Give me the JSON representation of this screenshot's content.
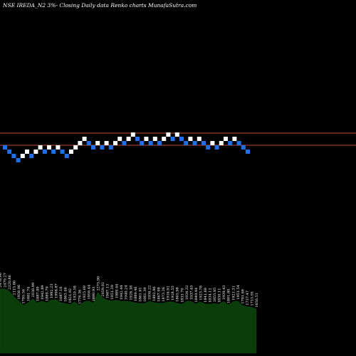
{
  "chart_data": {
    "type": "renko",
    "title": "NSE IREDA_N2  3%-  Closing Daily data  Renko  charts MunafaSutra.com",
    "colors": {
      "background": "#000000",
      "up_brick": "#ffffff",
      "down_brick": "#1e6fe8",
      "reference_line": "#c0522a",
      "volume_fill": "#0b3d0b",
      "volume_text": "#ffffff"
    },
    "reference_lines": [
      {
        "name": "upper",
        "value": 1.055
      },
      {
        "name": "lower",
        "value": 1.0
      }
    ],
    "bricks": [
      {
        "d": "down",
        "level": 2
      },
      {
        "d": "down",
        "level": 1
      },
      {
        "d": "down",
        "level": 0
      },
      {
        "d": "down",
        "level": -1
      },
      {
        "d": "up",
        "level": 0
      },
      {
        "d": "up",
        "level": 1
      },
      {
        "d": "down",
        "level": 0
      },
      {
        "d": "up",
        "level": 1
      },
      {
        "d": "up",
        "level": 2
      },
      {
        "d": "down",
        "level": 1
      },
      {
        "d": "up",
        "level": 2
      },
      {
        "d": "down",
        "level": 1
      },
      {
        "d": "up",
        "level": 2
      },
      {
        "d": "down",
        "level": 1
      },
      {
        "d": "down",
        "level": 0
      },
      {
        "d": "up",
        "level": 1
      },
      {
        "d": "up",
        "level": 2
      },
      {
        "d": "up",
        "level": 3
      },
      {
        "d": "up",
        "level": 4
      },
      {
        "d": "down",
        "level": 3
      },
      {
        "d": "down",
        "level": 2
      },
      {
        "d": "up",
        "level": 3
      },
      {
        "d": "down",
        "level": 2
      },
      {
        "d": "up",
        "level": 3
      },
      {
        "d": "down",
        "level": 2
      },
      {
        "d": "up",
        "level": 3
      },
      {
        "d": "up",
        "level": 4
      },
      {
        "d": "down",
        "level": 3
      },
      {
        "d": "up",
        "level": 4
      },
      {
        "d": "up",
        "level": 5
      },
      {
        "d": "down",
        "level": 4
      },
      {
        "d": "down",
        "level": 3
      },
      {
        "d": "up",
        "level": 4
      },
      {
        "d": "down",
        "level": 3
      },
      {
        "d": "up",
        "level": 4
      },
      {
        "d": "down",
        "level": 3
      },
      {
        "d": "up",
        "level": 4
      },
      {
        "d": "up",
        "level": 5
      },
      {
        "d": "down",
        "level": 4
      },
      {
        "d": "up",
        "level": 5
      },
      {
        "d": "down",
        "level": 4
      },
      {
        "d": "down",
        "level": 3
      },
      {
        "d": "up",
        "level": 4
      },
      {
        "d": "down",
        "level": 3
      },
      {
        "d": "up",
        "level": 4
      },
      {
        "d": "down",
        "level": 3
      },
      {
        "d": "down",
        "level": 2
      },
      {
        "d": "up",
        "level": 3
      },
      {
        "d": "down",
        "level": 2
      },
      {
        "d": "up",
        "level": 3
      },
      {
        "d": "up",
        "level": 4
      },
      {
        "d": "down",
        "level": 3
      },
      {
        "d": "up",
        "level": 4
      },
      {
        "d": "down",
        "level": 3
      },
      {
        "d": "down",
        "level": 2
      },
      {
        "d": "down",
        "level": 1
      }
    ],
    "volume_ylim": [
      0,
      2400
    ],
    "volume": [
      {
        "v": 2476.96,
        "label": "2476.96"
      },
      {
        "v": 2470.27,
        "label": "2470.27"
      },
      {
        "v": 2320.86,
        "label": "2320.86"
      },
      {
        "v": 2115.86,
        "label": "2115.86"
      },
      {
        "v": 1958.06,
        "label": "1958.06"
      },
      {
        "v": 1795.56,
        "label": "1795.56"
      },
      {
        "v": 1881.74,
        "label": "1881.74"
      },
      {
        "v": 2036.99,
        "label": "2036.99"
      },
      {
        "v": 1887.99,
        "label": "1887.99"
      },
      {
        "v": 1942.89,
        "label": "1942.89"
      },
      {
        "v": 1889.79,
        "label": "1889.79"
      },
      {
        "v": 1992.23,
        "label": "1992.23"
      },
      {
        "v": 1998.87,
        "label": "1998.87"
      },
      {
        "v": 1887.16,
        "label": "1887.16"
      },
      {
        "v": 1863.46,
        "label": "1863.46"
      },
      {
        "v": 1821.92,
        "label": "1821.92"
      },
      {
        "v": 1920.58,
        "label": "1920.58"
      },
      {
        "v": 1776.36,
        "label": "1776.36"
      },
      {
        "v": 1925.69,
        "label": "1925.69"
      },
      {
        "v": 1956.44,
        "label": "1956.44"
      },
      {
        "v": 1880.93,
        "label": "1880.93"
      },
      {
        "v": 2275.9,
        "label": "2275.90"
      },
      {
        "v": 2059.02,
        "label": "2059.02"
      },
      {
        "v": 1987.13,
        "label": "1987.13"
      },
      {
        "v": 1951.39,
        "label": "1951.39"
      },
      {
        "v": 1989.44,
        "label": "1989.44"
      },
      {
        "v": 1942.44,
        "label": "1942.44"
      },
      {
        "v": 1940.24,
        "label": "1940.24"
      },
      {
        "v": 1928.18,
        "label": "1928.18"
      },
      {
        "v": 1889.46,
        "label": "1889.46"
      },
      {
        "v": 1861.91,
        "label": "1861.91"
      },
      {
        "v": 1861.39,
        "label": "1861.39"
      },
      {
        "v": 1936.22,
        "label": "1936.22"
      },
      {
        "v": 1892.86,
        "label": "1892.86"
      },
      {
        "v": 1867.98,
        "label": "1867.98"
      },
      {
        "v": 1873.26,
        "label": "1873.26"
      },
      {
        "v": 1916.91,
        "label": "1916.91"
      },
      {
        "v": 1918.55,
        "label": "1918.55"
      },
      {
        "v": 1865.98,
        "label": "1865.98"
      },
      {
        "v": 1833.7,
        "label": "1833.70"
      },
      {
        "v": 1934.32,
        "label": "1934.32"
      },
      {
        "v": 1937.45,
        "label": "1937.45"
      },
      {
        "v": 1849.44,
        "label": "1849.44"
      },
      {
        "v": 1923.78,
        "label": "1923.78"
      },
      {
        "v": 1841.69,
        "label": "1841.69"
      },
      {
        "v": 1834.12,
        "label": "1834.12"
      },
      {
        "v": 1855.85,
        "label": "1855.85"
      },
      {
        "v": 1830.11,
        "label": "1830.11"
      },
      {
        "v": 1939.43,
        "label": "1939.43"
      },
      {
        "v": 1801.8,
        "label": "1801.80"
      },
      {
        "v": 1921.31,
        "label": "1921.31"
      },
      {
        "v": 1951.54,
        "label": "1951.54"
      },
      {
        "v": 1791.68,
        "label": "1791.68"
      },
      {
        "v": 1737.47,
        "label": "1737.47"
      },
      {
        "v": 1715.91,
        "label": "1715.91"
      },
      {
        "v": 1656.51,
        "label": "1656.51"
      }
    ]
  }
}
